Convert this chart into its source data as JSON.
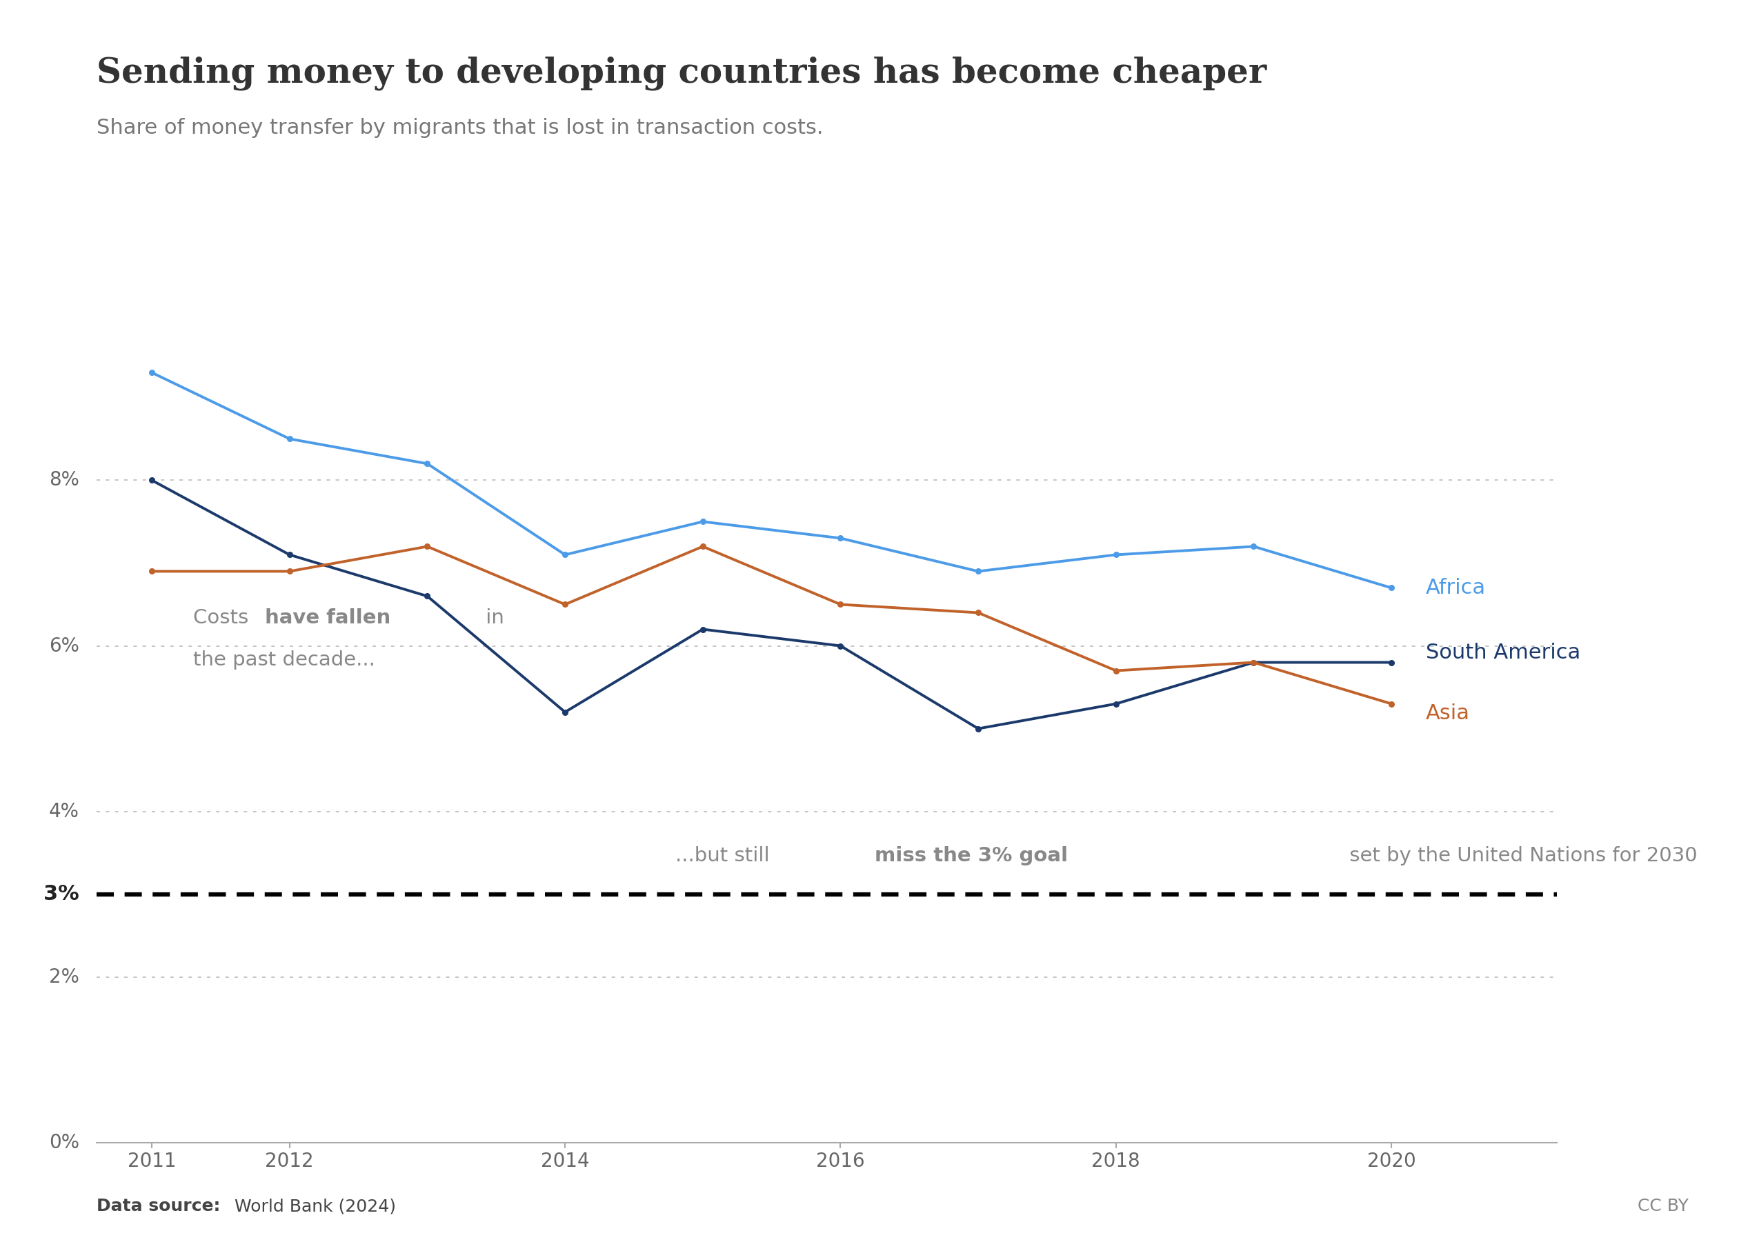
{
  "title": "Sending money to developing countries has become cheaper",
  "subtitle": "Share of money transfer by migrants that is lost in transaction costs.",
  "years": [
    2011,
    2012,
    2013,
    2014,
    2015,
    2016,
    2017,
    2018,
    2019,
    2020
  ],
  "africa": [
    9.3,
    8.5,
    8.2,
    7.1,
    7.5,
    7.3,
    6.9,
    7.1,
    7.2,
    6.7
  ],
  "south_america": [
    8.0,
    7.1,
    6.6,
    5.2,
    6.2,
    6.0,
    5.0,
    5.3,
    5.8,
    5.8
  ],
  "asia": [
    6.9,
    6.9,
    7.2,
    6.5,
    7.2,
    6.5,
    6.4,
    5.7,
    5.8,
    5.3
  ],
  "africa_color": "#4C9BE8",
  "south_america_color": "#1B3A6B",
  "asia_color": "#C0622A",
  "goal_line": 3.0,
  "dotted_yticks": [
    2,
    4,
    6,
    8
  ],
  "ylim": [
    0,
    10.5
  ],
  "xlim": [
    2010.6,
    2021.2
  ],
  "datasource_bold": "Data source:",
  "datasource_rest": " World Bank (2024)",
  "cc": "CC BY",
  "owid_box_color": "#1B3A6B",
  "owid_red": "#C0622A",
  "background_color": "#FFFFFF"
}
